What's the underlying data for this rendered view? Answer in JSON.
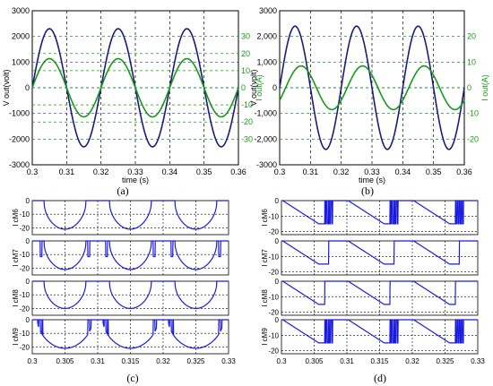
{
  "figure": {
    "captions": [
      "(a)",
      "(b)",
      "(c)",
      "(d)"
    ]
  },
  "colors": {
    "voltage": "#1c1c7c",
    "current": "#169916",
    "switch": "#1a1ae0",
    "grid_v": "#000000",
    "grid_h": "#2a2ab0"
  },
  "chart_data": [
    {
      "id": "a",
      "type": "line",
      "xlabel": "time (s)",
      "ylabel": "V out(volt)",
      "y2label": "I out(A)",
      "xlim": [
        0.3,
        0.36
      ],
      "ylim": [
        -3000,
        3000
      ],
      "y2lim": [
        -45,
        45
      ],
      "x_ticks": [
        "0.3",
        "0.31",
        "0.32",
        "0.33",
        "0.34",
        "0.35",
        "0.36"
      ],
      "y_ticks": [
        "3000",
        "2000",
        "1000",
        "0",
        "-1000",
        "-2000",
        "-3000"
      ],
      "y2_ticks": [
        "30",
        "20",
        "10",
        "0",
        "-10",
        "-20",
        "-30"
      ],
      "frequency_hz": 50,
      "series": [
        {
          "axis": "left",
          "amplitude": 2300,
          "phase_deg": 0
        },
        {
          "axis": "right",
          "amplitude": 17,
          "phase_deg": 0
        }
      ]
    },
    {
      "id": "b",
      "type": "line",
      "xlabel": "time (s)",
      "ylabel": "V out(volt)",
      "y2label": "I out(A)",
      "xlim": [
        0.3,
        0.36
      ],
      "ylim": [
        -3000,
        3000
      ],
      "y2lim": [
        -30,
        30
      ],
      "x_ticks": [
        "0.3",
        "0.31",
        "0.32",
        "0.33",
        "0.34",
        "0.35",
        "0.36"
      ],
      "y_ticks": [
        "3000",
        "2,000",
        "1,000",
        "0",
        "-1,000",
        "-2,000",
        "-3000"
      ],
      "y2_ticks": [
        "20",
        "10",
        "0",
        "-10",
        "-20"
      ],
      "frequency_hz": 50,
      "series": [
        {
          "axis": "left",
          "amplitude": 2400,
          "phase_deg": 0
        },
        {
          "axis": "right",
          "amplitude": 8.5,
          "phase_deg": -35
        }
      ]
    },
    {
      "id": "c",
      "type": "line",
      "xlim": [
        0.3,
        0.33
      ],
      "x_ticks": [
        "0.3",
        "0.305",
        "0.31",
        "0.315",
        "0.32",
        "0.325",
        "0.33"
      ],
      "y_ticks": [
        "0",
        "-10",
        "-20"
      ],
      "ylim": [
        -25,
        0
      ],
      "panels": [
        {
          "label": "I cM6",
          "mode": "center",
          "peak": -21
        },
        {
          "label": "I cM7",
          "mode": "center_spikes",
          "peak": -21
        },
        {
          "label": "I cM8",
          "mode": "center",
          "peak": -20
        },
        {
          "label": "I cM9",
          "mode": "wide_spikes",
          "peak": -21
        }
      ]
    },
    {
      "id": "d",
      "type": "line",
      "xlim": [
        0.3,
        0.33
      ],
      "x_ticks": [
        "0.3",
        "0.305",
        "0.31",
        "0.315",
        "0.32",
        "0.325",
        "0.33"
      ],
      "y_ticks": [
        "0",
        "-10",
        "-20"
      ],
      "ylim": [
        -22,
        0
      ],
      "panels": [
        {
          "label": "I cM6",
          "mode": "ramp_spikes",
          "peak": -15
        },
        {
          "label": "I cM7",
          "mode": "ramp_pulse",
          "peak": -15
        },
        {
          "label": "I cM8",
          "mode": "ramp",
          "peak": -15
        },
        {
          "label": "I cM9",
          "mode": "ramp_spikes",
          "peak": -15
        }
      ]
    }
  ]
}
